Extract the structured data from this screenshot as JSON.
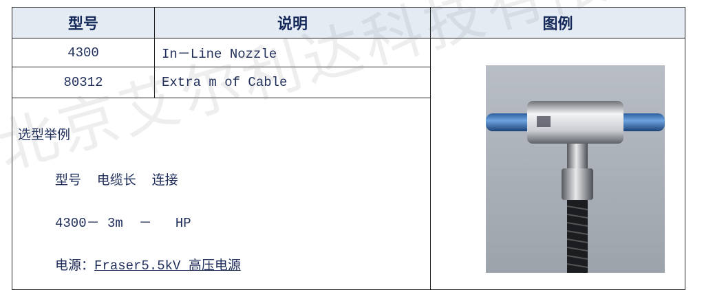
{
  "watermark": "北京艾尔利达科技有限公司",
  "table": {
    "header": [
      "型号",
      "说明",
      "图例"
    ],
    "rows": [
      [
        "4300",
        "In－Line Nozzle"
      ],
      [
        "80312",
        "Extra m of Cable"
      ]
    ],
    "example": {
      "title": "选型举例",
      "lines": [
        "型号  电缆长  连接",
        "4300－ 3m  －   HP"
      ],
      "power_label": "电源：",
      "power_value": "Fraser5.5kV 高压电源"
    }
  }
}
